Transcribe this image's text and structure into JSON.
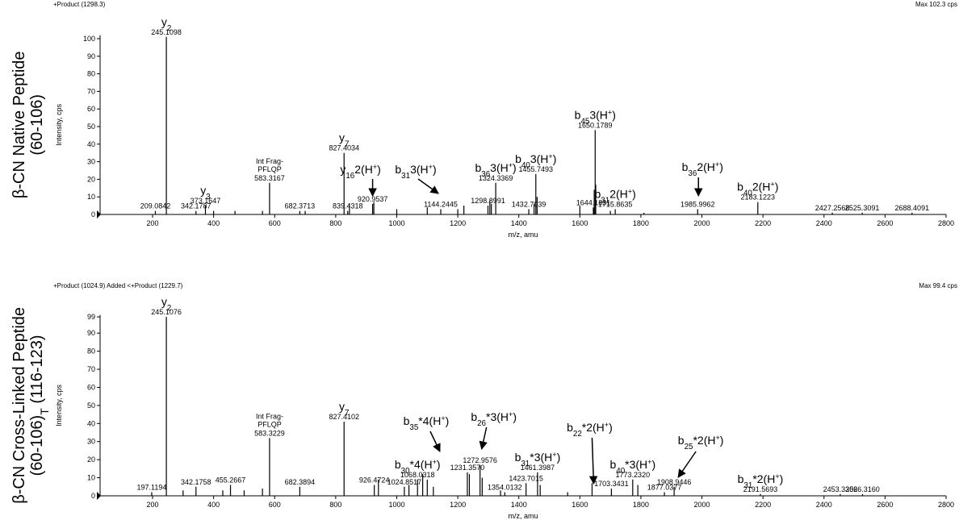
{
  "chart_data": [
    {
      "type": "spectrum",
      "header_left": "+Product (1298.3)",
      "header_right": "Max 102.3 cps",
      "title_lines": [
        [
          {
            "t": "β-CN Native Peptide"
          }
        ],
        [
          {
            "t": "(60-106)"
          }
        ]
      ],
      "ylabel": "Intensity, cps",
      "xlabel": "m/z, amu",
      "color": "#000000",
      "xlim": [
        28,
        2800
      ],
      "xticks": [
        200,
        400,
        600,
        800,
        1000,
        1200,
        1400,
        1600,
        1800,
        2000,
        2200,
        2400,
        2600,
        2800
      ],
      "ylim": [
        0,
        102
      ],
      "yticks": [
        0,
        10,
        20,
        30,
        40,
        50,
        60,
        70,
        80,
        90,
        100
      ],
      "x": [
        209.0842,
        245.1098,
        342.1787,
        373.1647,
        400,
        470,
        560,
        583.3167,
        682.3713,
        700,
        827.4034,
        839.4318,
        845,
        920.9537,
        925,
        1000,
        1100,
        1144.2445,
        1200,
        1220,
        1298.8991,
        1305,
        1310,
        1324.3369,
        1432.7039,
        1450,
        1455.7493,
        1460,
        1600,
        1644.1831,
        1647,
        1650.1789,
        1652,
        1700,
        1715.8635,
        1810,
        1985.9962,
        2183.1223,
        2427.2568,
        2525.3091,
        2688.4091
      ],
      "values": [
        2,
        101,
        2,
        5,
        2,
        2,
        2,
        18,
        2,
        2,
        35,
        2,
        6,
        6,
        7,
        3,
        4,
        3,
        3,
        5,
        5,
        8,
        6,
        18,
        3,
        6,
        23,
        10,
        5,
        4,
        14,
        48,
        17,
        2,
        3,
        1,
        3,
        7,
        1,
        1,
        1
      ],
      "x_labels": [
        "209.0842",
        "245.1098",
        "342.1787",
        "373.1647",
        null,
        null,
        null,
        "583.3167",
        "682.3713",
        null,
        "827.4034",
        "839.4318",
        null,
        "920.9537",
        null,
        null,
        null,
        "1144.2445",
        null,
        null,
        "1298.8991",
        null,
        null,
        "1324.3369",
        "1432.7039",
        null,
        "1455.7493",
        null,
        null,
        "1644.1831",
        null,
        "1650.1789",
        null,
        null,
        "1715.8635",
        null,
        "1985.9962",
        "2183.1223",
        "2427.2568",
        "2525.3091",
        "2688.4091"
      ],
      "ions": [
        null,
        {
          "lines": [
            [
              {
                "t": "y"
              },
              {
                "t": "2",
                "s": "sub"
              }
            ]
          ]
        },
        null,
        {
          "lines": [
            [
              {
                "t": "y"
              },
              {
                "t": "3",
                "s": "sub"
              }
            ]
          ]
        },
        null,
        null,
        null,
        {
          "lines": [
            [
              {
                "t": "Int Frag-"
              }
            ],
            [
              {
                "t": "PFLQP"
              }
            ]
          ]
        },
        null,
        null,
        {
          "lines": [
            [
              {
                "t": "y"
              },
              {
                "t": "7",
                "s": "sub"
              }
            ]
          ]
        },
        null,
        null,
        {
          "lines": [
            [
              {
                "t": "y"
              },
              {
                "t": "16",
                "s": "sub"
              },
              {
                "t": "2(H"
              },
              {
                "t": "+",
                "s": "sup"
              },
              {
                "t": ")"
              }
            ]
          ],
          "arrow": true
        },
        null,
        null,
        null,
        {
          "lines": [
            [
              {
                "t": "b"
              },
              {
                "t": "31",
                "s": "sub"
              },
              {
                "t": "3(H"
              },
              {
                "t": "+",
                "s": "sup"
              },
              {
                "t": ")"
              }
            ]
          ],
          "arrow": true
        },
        null,
        null,
        null,
        null,
        null,
        {
          "lines": [
            [
              {
                "t": "b"
              },
              {
                "t": "36",
                "s": "sub"
              },
              {
                "t": "3(H"
              },
              {
                "t": "+",
                "s": "sup"
              },
              {
                "t": ")"
              }
            ]
          ]
        },
        null,
        null,
        {
          "lines": [
            [
              {
                "t": "b"
              },
              {
                "t": "40",
                "s": "sub"
              },
              {
                "t": "3(H"
              },
              {
                "t": "+",
                "s": "sup"
              },
              {
                "t": ")"
              }
            ]
          ]
        },
        null,
        null,
        null,
        null,
        {
          "lines": [
            [
              {
                "t": "b"
              },
              {
                "t": "45",
                "s": "sub"
              },
              {
                "t": "3(H"
              },
              {
                "t": "+",
                "s": "sup"
              },
              {
                "t": ")"
              }
            ]
          ]
        },
        null,
        null,
        {
          "lines": [
            [
              {
                "t": "b"
              },
              {
                "t": "31",
                "s": "sub"
              },
              {
                "t": "2(H"
              },
              {
                "t": "+",
                "s": "sup"
              },
              {
                "t": ")"
              }
            ]
          ]
        },
        null,
        {
          "lines": [
            [
              {
                "t": "b"
              },
              {
                "t": "36",
                "s": "sub"
              },
              {
                "t": "2(H"
              },
              {
                "t": "+",
                "s": "sup"
              },
              {
                "t": ")"
              }
            ]
          ],
          "arrow": true
        },
        {
          "lines": [
            [
              {
                "t": "b"
              },
              {
                "t": "40",
                "s": "sub"
              },
              {
                "t": "2(H"
              },
              {
                "t": "+",
                "s": "sup"
              },
              {
                "t": ")"
              }
            ]
          ]
        },
        null,
        null,
        null
      ]
    },
    {
      "type": "spectrum",
      "header_left": "+Product (1024.9)  Added <+Product (1229.7)",
      "header_right": "Max 99.4 cps",
      "title_lines": [
        [
          {
            "t": "β-CN Cross-Linked Peptide"
          }
        ],
        [
          {
            "t": "(60-106)"
          },
          {
            "t": "T",
            "s": "sub"
          },
          {
            "t": " (116-123)"
          }
        ]
      ],
      "ylabel": "Intensity, cps",
      "xlabel": "m/z, amu",
      "color": "#000000",
      "xlim": [
        28,
        2800
      ],
      "xticks": [
        200,
        400,
        600,
        800,
        1000,
        1200,
        1400,
        1600,
        1800,
        2000,
        2200,
        2400,
        2600,
        2800
      ],
      "ylim": [
        0,
        100
      ],
      "yticks": [
        0,
        10,
        20,
        30,
        40,
        50,
        60,
        70,
        80,
        90,
        99
      ],
      "x": [
        197.1194,
        245.1076,
        300,
        342.1758,
        430,
        455.2667,
        500,
        560,
        583.3229,
        682.3894,
        827.4102,
        926.4724,
        940,
        1024.8517,
        1040,
        1068.0318,
        1085,
        1100,
        1120,
        1231.357,
        1238,
        1272.9576,
        1280,
        1340,
        1354.0132,
        1423.7015,
        1461.3987,
        1470,
        1560,
        1640,
        1703.3431,
        1773.232,
        1790,
        1877.0377,
        1908.9446,
        2191.5693,
        2453.3306,
        2526.316
      ],
      "values": [
        2,
        99,
        3,
        5,
        3,
        6,
        3,
        4,
        32,
        5,
        41,
        6,
        9,
        5,
        6,
        9,
        12,
        9,
        5,
        13,
        12,
        17,
        10,
        3,
        2,
        7,
        13,
        6,
        2,
        7,
        4,
        9,
        6,
        2,
        5,
        1,
        1,
        1
      ],
      "x_labels": [
        "197.1194",
        "245.1076",
        null,
        "342.1758",
        null,
        "455.2667",
        null,
        null,
        "583.3229",
        "682.3894",
        "827.4102",
        "926.4724",
        null,
        "1024.8517",
        null,
        "1068.0318",
        null,
        null,
        null,
        "1231.3570",
        null,
        "1272.9576",
        null,
        null,
        "1354.0132",
        "1423.7015",
        "1461.3987",
        null,
        null,
        null,
        "1703.3431",
        "1773.2320",
        null,
        "1877.0377",
        "1908.9446",
        "2191.5693",
        "2453.3306",
        "2526.3160"
      ],
      "ions": [
        null,
        {
          "lines": [
            [
              {
                "t": "y"
              },
              {
                "t": "2",
                "s": "sub"
              }
            ]
          ]
        },
        null,
        null,
        null,
        null,
        null,
        null,
        {
          "lines": [
            [
              {
                "t": "Int Frag-"
              }
            ],
            [
              {
                "t": "PFLQP"
              }
            ]
          ]
        },
        null,
        {
          "lines": [
            [
              {
                "t": "y"
              },
              {
                "t": "7",
                "s": "sub"
              }
            ]
          ]
        },
        null,
        null,
        null,
        null,
        {
          "lines": [
            [
              {
                "t": "b"
              },
              {
                "t": "30",
                "s": "sub"
              },
              {
                "t": "*4(H"
              },
              {
                "t": "+",
                "s": "sup"
              },
              {
                "t": ")"
              }
            ]
          ]
        },
        null,
        null,
        null,
        {
          "lines": [
            [
              {
                "t": "b"
              },
              {
                "t": "35",
                "s": "sub"
              },
              {
                "t": "*4(H"
              },
              {
                "t": "+",
                "s": "sup"
              },
              {
                "t": ")"
              }
            ]
          ],
          "arrow": true
        },
        null,
        {
          "lines": [
            [
              {
                "t": "b"
              },
              {
                "t": "26",
                "s": "sub"
              },
              {
                "t": "*3(H"
              },
              {
                "t": "+",
                "s": "sup"
              },
              {
                "t": ")"
              }
            ]
          ],
          "arrow": true
        },
        null,
        null,
        null,
        null,
        {
          "lines": [
            [
              {
                "t": "b"
              },
              {
                "t": "31",
                "s": "sub"
              },
              {
                "t": "*3(H"
              },
              {
                "t": "+",
                "s": "sup"
              },
              {
                "t": ")"
              }
            ]
          ]
        },
        null,
        null,
        {
          "lines": [
            [
              {
                "t": "b"
              },
              {
                "t": "22",
                "s": "sub"
              },
              {
                "t": "*2(H"
              },
              {
                "t": "+",
                "s": "sup"
              },
              {
                "t": ")"
              }
            ]
          ],
          "arrow": true
        },
        null,
        {
          "lines": [
            [
              {
                "t": "b"
              },
              {
                "t": "40",
                "s": "sub"
              },
              {
                "t": "*3(H"
              },
              {
                "t": "+",
                "s": "sup"
              },
              {
                "t": ")"
              }
            ]
          ]
        },
        null,
        null,
        {
          "lines": [
            [
              {
                "t": "b"
              },
              {
                "t": "25",
                "s": "sub"
              },
              {
                "t": "*2(H"
              },
              {
                "t": "+",
                "s": "sup"
              },
              {
                "t": ")"
              }
            ]
          ],
          "arrow": true
        },
        {
          "lines": [
            [
              {
                "t": "b"
              },
              {
                "t": "31",
                "s": "sub"
              },
              {
                "t": "*2(H"
              },
              {
                "t": "+",
                "s": "sup"
              },
              {
                "t": ")"
              }
            ]
          ]
        },
        null,
        null
      ]
    }
  ]
}
